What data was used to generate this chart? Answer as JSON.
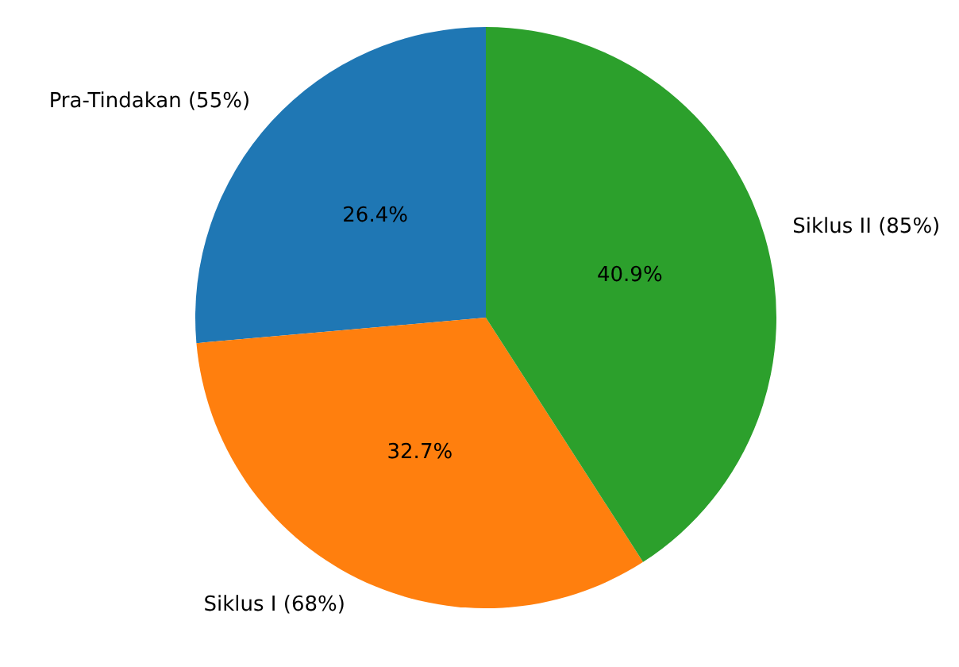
{
  "chart_data": {
    "type": "pie",
    "categories": [
      "Pra-Tindakan (55%)",
      "Siklus I (68%)",
      "Siklus II (85%)"
    ],
    "values": [
      26.4,
      32.7,
      40.9
    ],
    "value_labels": [
      "26.4%",
      "32.7%",
      "40.9%"
    ],
    "colors": [
      "#1f77b4",
      "#ff7f0e",
      "#2ca02c"
    ]
  }
}
